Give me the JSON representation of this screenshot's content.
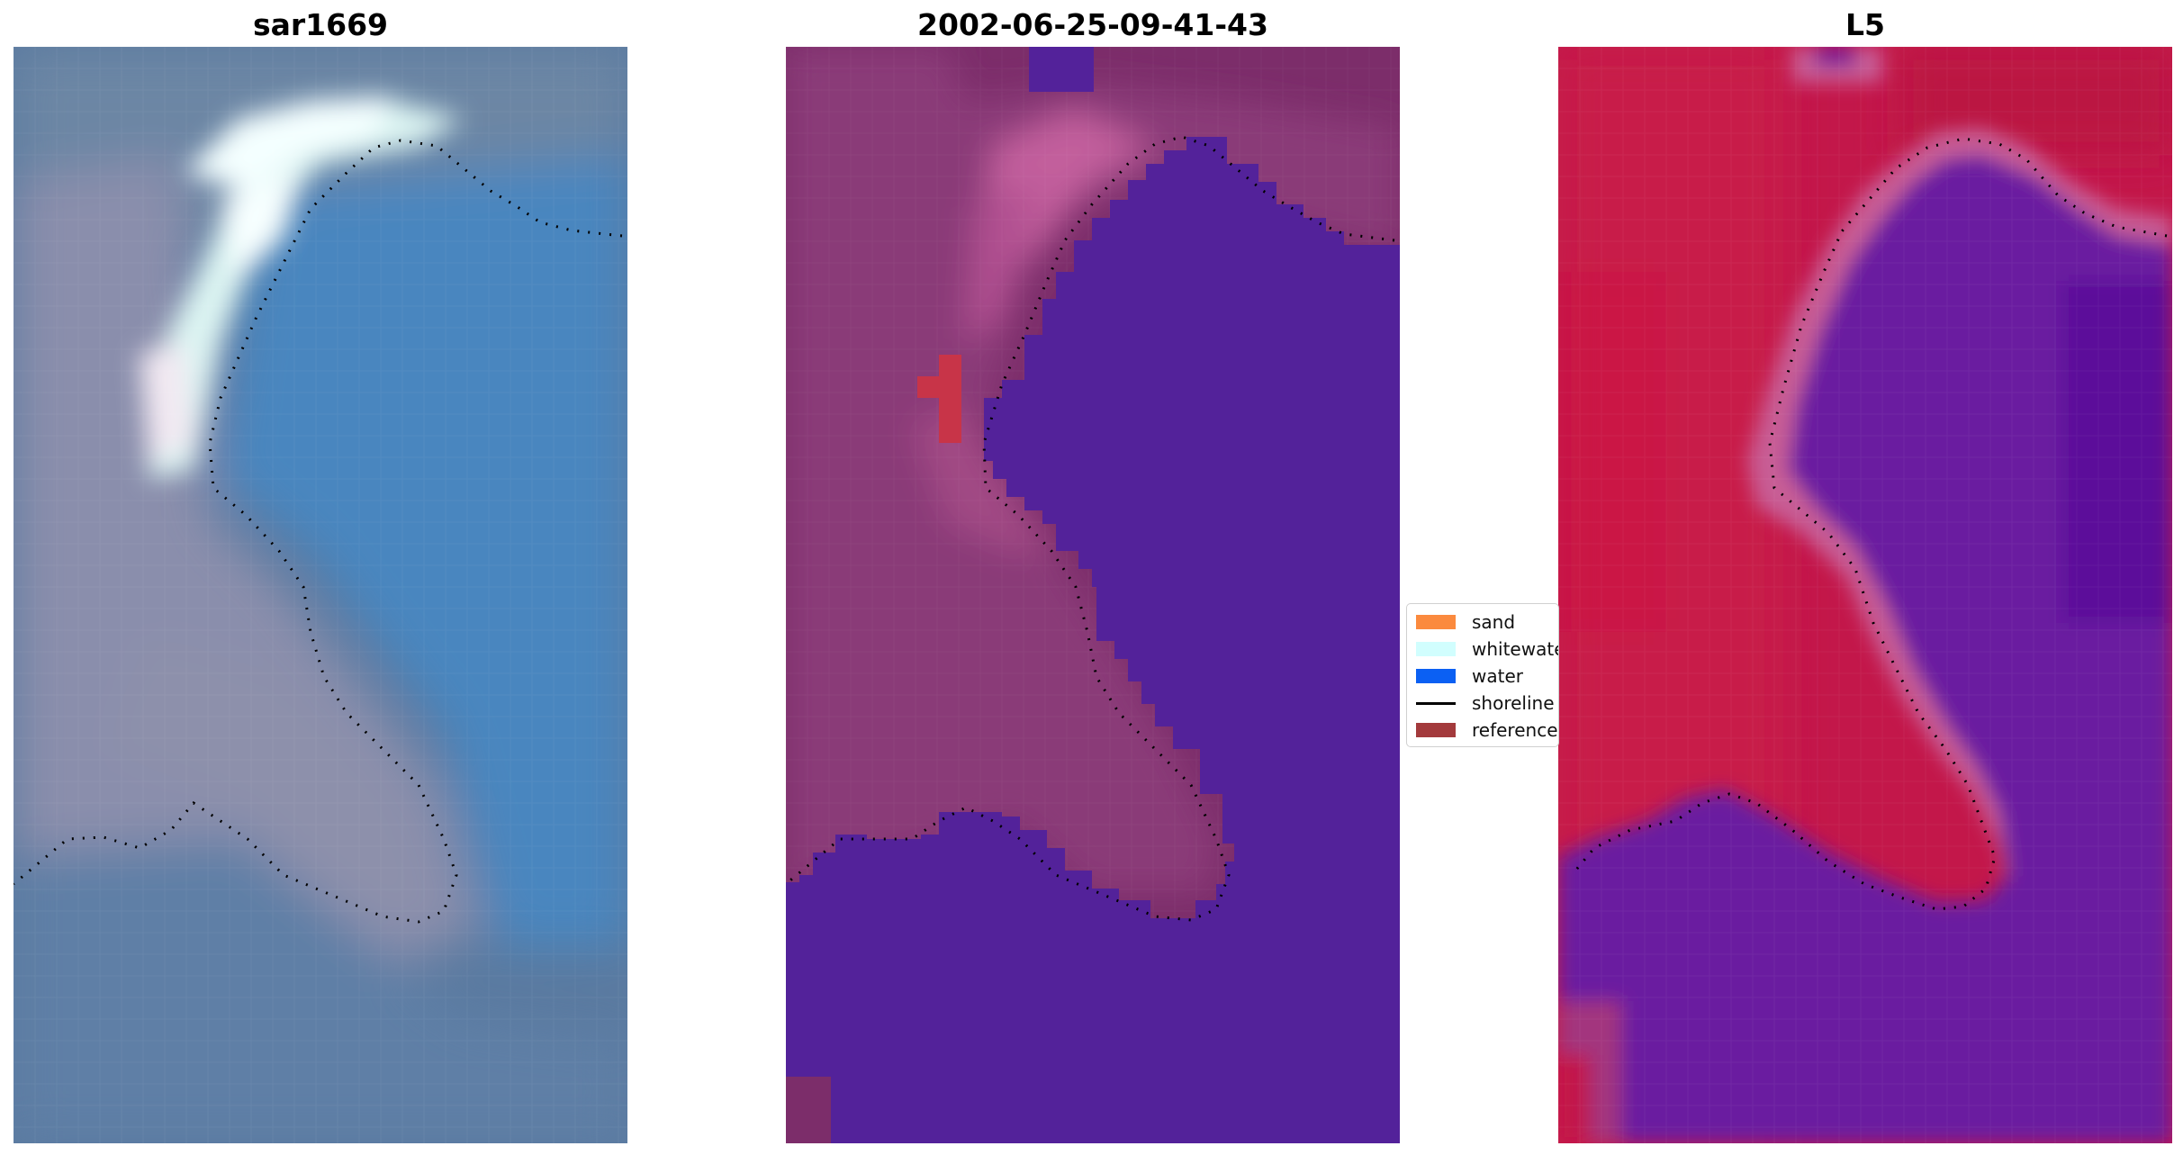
{
  "panels": [
    {
      "title": "sar1669",
      "kind": "rgb"
    },
    {
      "title": "2002-06-25-09-41-43",
      "kind": "classified"
    },
    {
      "title": "L5",
      "kind": "index"
    }
  ],
  "legend": {
    "items": [
      {
        "label": "sand",
        "color": "#fb8a3e",
        "type": "patch"
      },
      {
        "label": "whitewater",
        "color": "#d1fefe",
        "type": "patch"
      },
      {
        "label": "water",
        "color": "#0b60f3",
        "type": "patch"
      },
      {
        "label": "shoreline",
        "color": "#000000",
        "type": "line"
      },
      {
        "label": "reference",
        "color": "#a33a3c",
        "type": "patch"
      }
    ]
  },
  "colors": {
    "water_class": "#53229a",
    "land_class": "#7c2d6a",
    "reference_patch": "#c83448",
    "index_land": "#c3174a",
    "index_water": "#6b1aa0"
  }
}
